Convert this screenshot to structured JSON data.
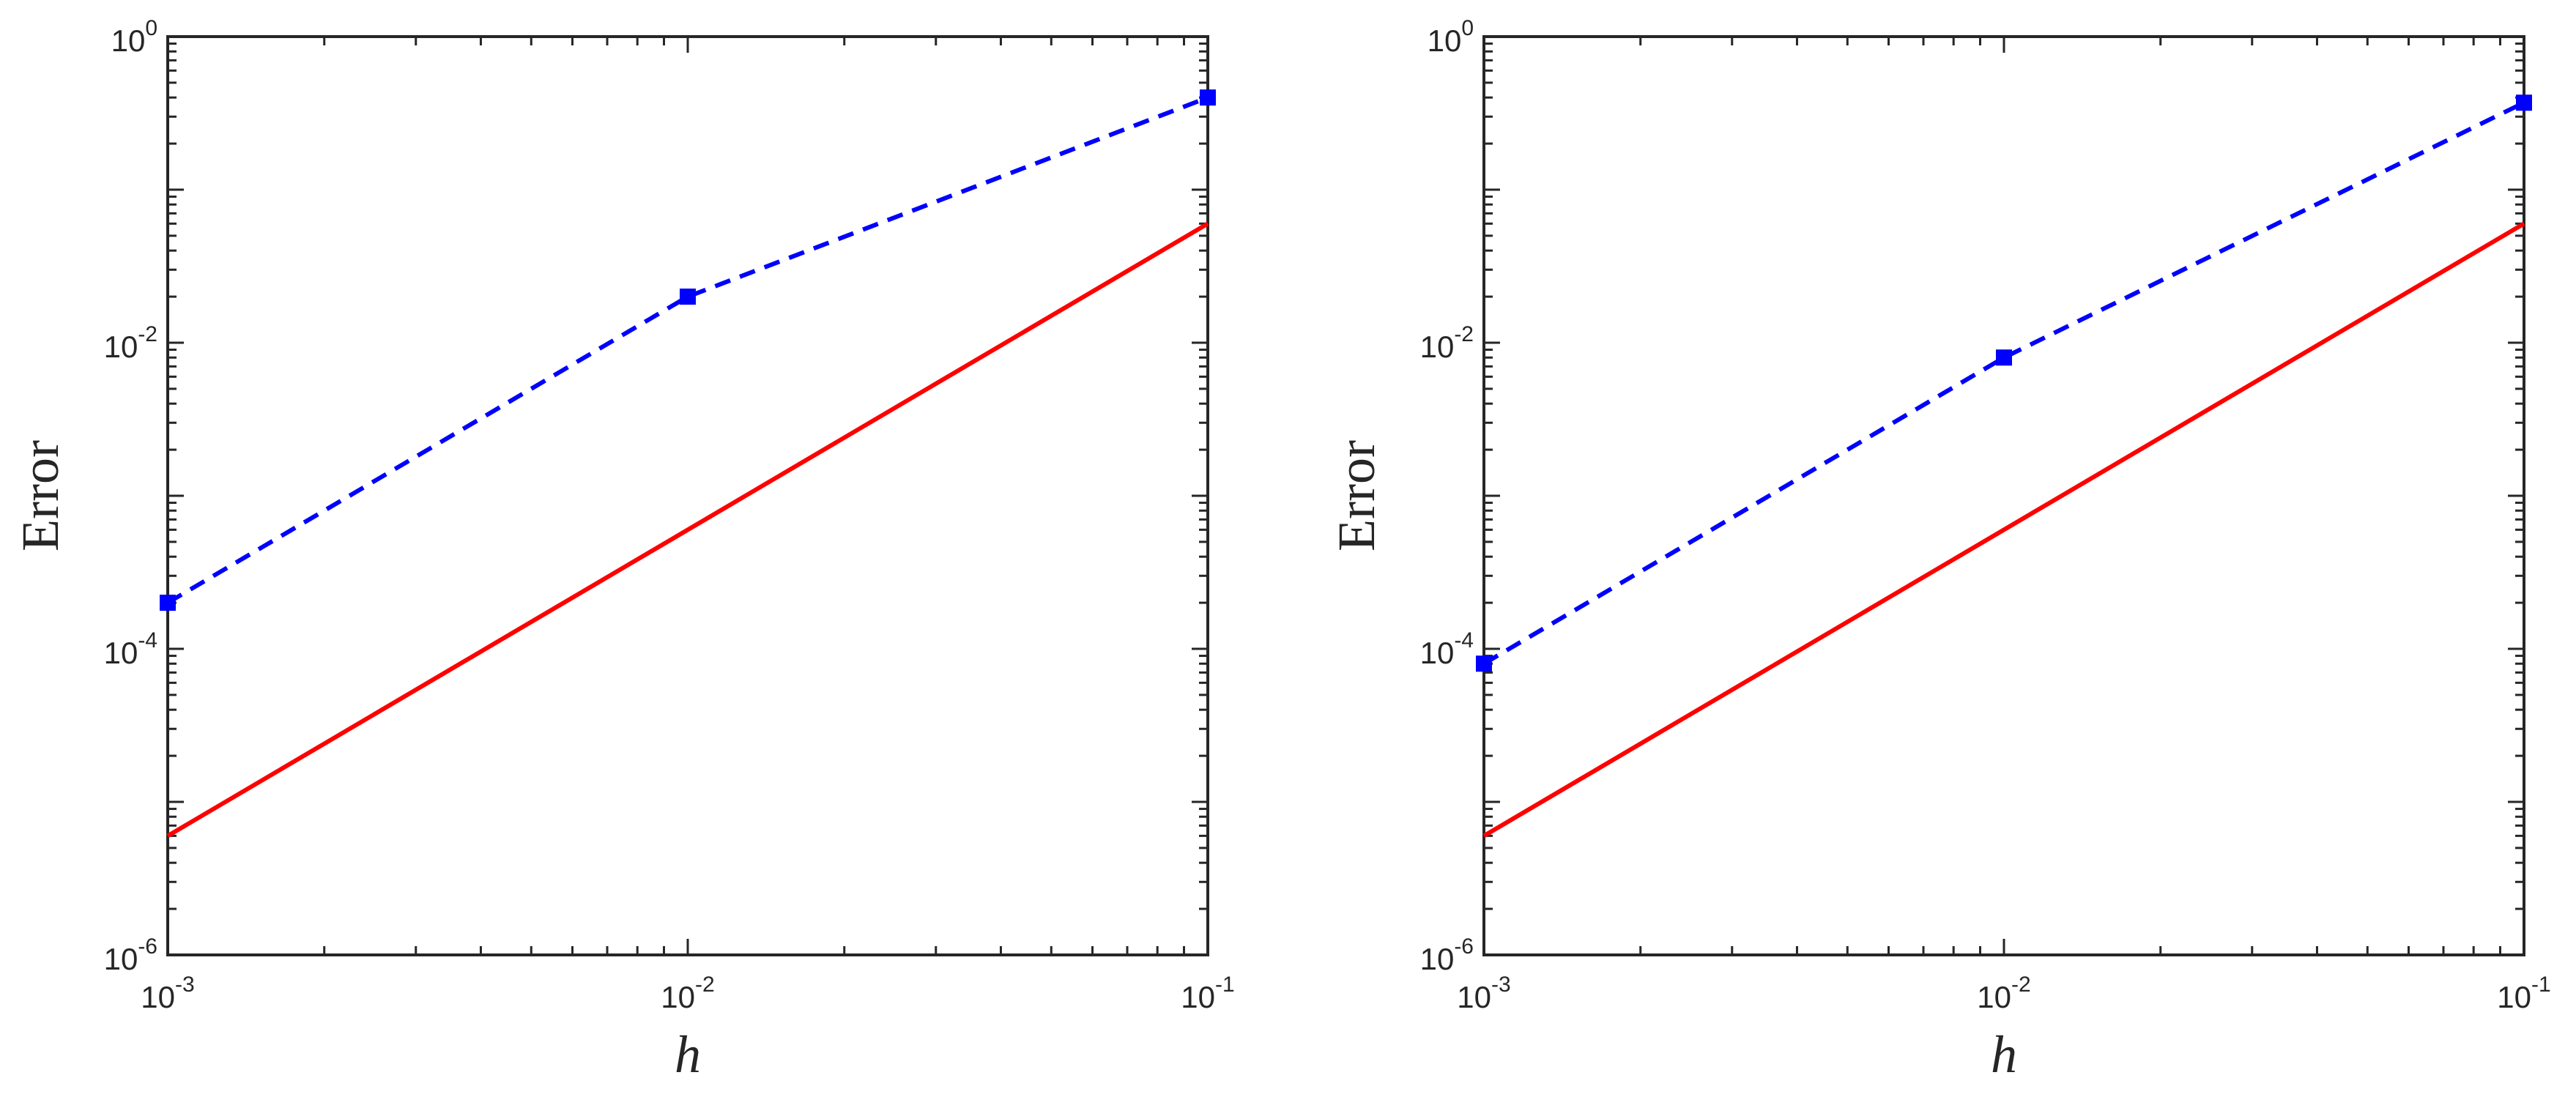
{
  "chart_data": [
    {
      "type": "line",
      "xlabel": "h",
      "ylabel": "Error",
      "xscale": "log",
      "yscale": "log",
      "xlim": [
        0.001,
        0.1
      ],
      "ylim": [
        1e-06,
        1
      ],
      "x_ticks": [
        {
          "base": "10",
          "exp": "-3",
          "value": 0.001
        },
        {
          "base": "10",
          "exp": "-2",
          "value": 0.01
        },
        {
          "base": "10",
          "exp": "-1",
          "value": 0.1
        }
      ],
      "y_ticks": [
        {
          "base": "10",
          "exp": "-6",
          "value": 1e-06
        },
        {
          "base": "10",
          "exp": "-4",
          "value": 0.0001
        },
        {
          "base": "10",
          "exp": "-2",
          "value": 0.01
        },
        {
          "base": "10",
          "exp": "0",
          "value": 1
        }
      ],
      "grid": false,
      "series": [
        {
          "color": "#0000ff",
          "style": "dashed",
          "marker": "square",
          "x": [
            0.001,
            0.01,
            0.1
          ],
          "y": [
            0.0002,
            0.02,
            0.4
          ]
        },
        {
          "color": "#ff0000",
          "style": "solid",
          "marker": "none",
          "x": [
            0.001,
            0.1
          ],
          "y": [
            6e-06,
            0.06
          ]
        }
      ]
    },
    {
      "type": "line",
      "xlabel": "h",
      "ylabel": "Error",
      "xscale": "log",
      "yscale": "log",
      "xlim": [
        0.001,
        0.1
      ],
      "ylim": [
        1e-06,
        1
      ],
      "x_ticks": [
        {
          "base": "10",
          "exp": "-3",
          "value": 0.001
        },
        {
          "base": "10",
          "exp": "-2",
          "value": 0.01
        },
        {
          "base": "10",
          "exp": "-1",
          "value": 0.1
        }
      ],
      "y_ticks": [
        {
          "base": "10",
          "exp": "-6",
          "value": 1e-06
        },
        {
          "base": "10",
          "exp": "-4",
          "value": 0.0001
        },
        {
          "base": "10",
          "exp": "-2",
          "value": 0.01
        },
        {
          "base": "10",
          "exp": "0",
          "value": 1
        }
      ],
      "grid": false,
      "series": [
        {
          "color": "#0000ff",
          "style": "dashed",
          "marker": "square",
          "x": [
            0.001,
            0.01,
            0.1
          ],
          "y": [
            8e-05,
            0.008,
            0.37
          ]
        },
        {
          "color": "#ff0000",
          "style": "solid",
          "marker": "none",
          "x": [
            0.001,
            0.1
          ],
          "y": [
            6e-06,
            0.06
          ]
        }
      ]
    }
  ]
}
